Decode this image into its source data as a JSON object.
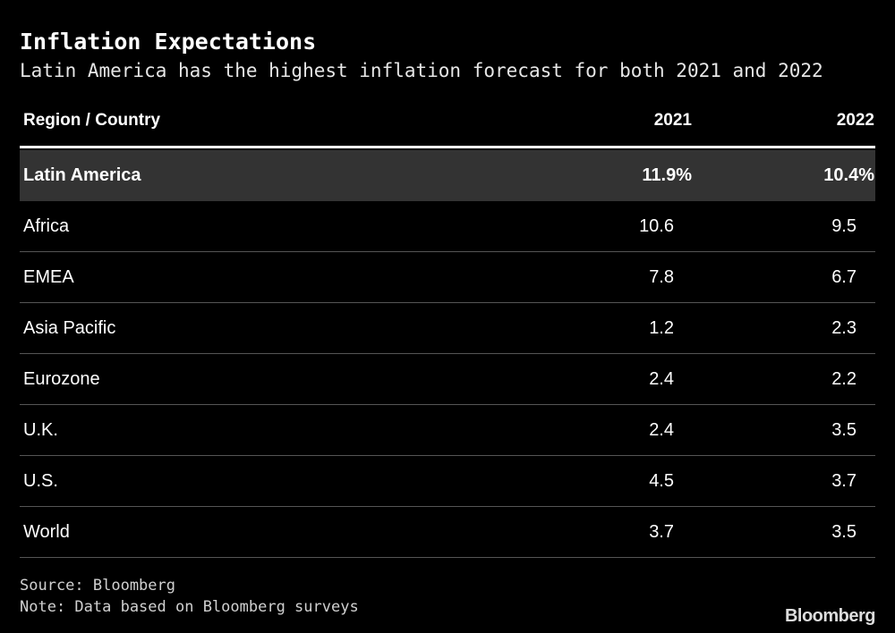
{
  "header": {
    "title": "Inflation Expectations",
    "subtitle": "Latin America has the highest inflation forecast for both 2021 and 2022"
  },
  "table": {
    "columns": [
      "Region / Country",
      "2021",
      "2022"
    ],
    "rows": [
      [
        "Latin America",
        "11.9%",
        "10.4%"
      ],
      [
        "Africa",
        "10.6",
        "9.5"
      ],
      [
        "EMEA",
        "7.8",
        "6.7"
      ],
      [
        "Asia Pacific",
        "1.2",
        "2.3"
      ],
      [
        "Eurozone",
        "2.4",
        "2.2"
      ],
      [
        "U.K.",
        "2.4",
        "3.5"
      ],
      [
        "U.S.",
        "4.5",
        "3.7"
      ],
      [
        "World",
        "3.7",
        "3.5"
      ]
    ]
  },
  "footer": {
    "source": "Source: Bloomberg",
    "note": "Note: Data based on Bloomberg surveys",
    "logo": "Bloomberg"
  }
}
